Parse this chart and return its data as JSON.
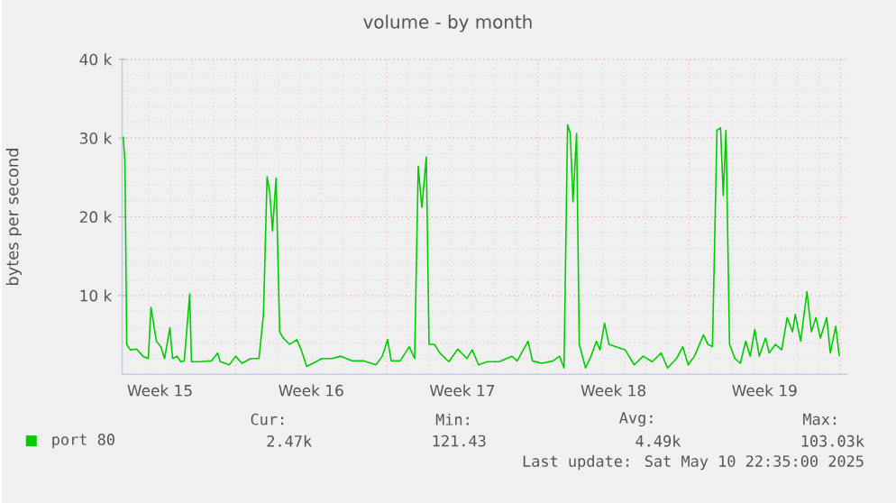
{
  "chart_data": {
    "type": "line",
    "title": "volume - by month",
    "ylabel": "bytes per second",
    "x": [
      "2025-04-08T19:00",
      "2025-04-08T21:00",
      "2025-04-08T23:00",
      "2025-04-09T03:00",
      "2025-04-09T10:00",
      "2025-04-09T17:00",
      "2025-04-09T23:00",
      "2025-04-10T02:00",
      "2025-04-10T08:00",
      "2025-04-10T13:00",
      "2025-04-10T17:00",
      "2025-04-10T23:00",
      "2025-04-11T02:00",
      "2025-04-11T07:00",
      "2025-04-11T11:00",
      "2025-04-11T15:00",
      "2025-04-11T21:00",
      "2025-04-11T23:00",
      "2025-04-12T08:00",
      "2025-04-12T21:00",
      "2025-04-13T04:00",
      "2025-04-13T07:00",
      "2025-04-13T17:00",
      "2025-04-14T00:00",
      "2025-04-14T07:00",
      "2025-04-14T17:00",
      "2025-04-15T02:00",
      "2025-04-15T07:00",
      "2025-04-15T11:00",
      "2025-04-15T14:00",
      "2025-04-15T17:00",
      "2025-04-15T21:00",
      "2025-04-16T01:00",
      "2025-04-16T05:00",
      "2025-04-16T12:00",
      "2025-04-16T20:00",
      "2025-04-17T01:00",
      "2025-04-17T07:00",
      "2025-04-17T14:00",
      "2025-04-18T00:00",
      "2025-04-18T11:00",
      "2025-04-18T21:00",
      "2025-04-19T10:00",
      "2025-04-19T23:00",
      "2025-04-20T12:00",
      "2025-04-20T19:00",
      "2025-04-21T01:00",
      "2025-04-21T05:00",
      "2025-04-21T15:00",
      "2025-04-22T01:00",
      "2025-04-22T07:00",
      "2025-04-22T11:00",
      "2025-04-22T15:00",
      "2025-04-22T20:00",
      "2025-04-22T23:00",
      "2025-04-23T05:00",
      "2025-04-23T11:00",
      "2025-04-23T21:00",
      "2025-04-24T07:00",
      "2025-04-24T17:00",
      "2025-04-24T23:00",
      "2025-04-25T06:00",
      "2025-04-25T16:00",
      "2025-04-26T05:00",
      "2025-04-26T19:00",
      "2025-04-27T01:00",
      "2025-04-27T13:00",
      "2025-04-27T18:00",
      "2025-04-28T04:00",
      "2025-04-28T17:00",
      "2025-04-29T00:00",
      "2025-04-29T05:00",
      "2025-04-29T09:00",
      "2025-04-29T12:00",
      "2025-04-29T15:00",
      "2025-04-29T19:00",
      "2025-04-29T22:00",
      "2025-04-30T05:00",
      "2025-04-30T11:00",
      "2025-04-30T17:00",
      "2025-04-30T21:00",
      "2025-05-01T02:00",
      "2025-05-01T07:00",
      "2025-05-01T15:00",
      "2025-05-02T01:00",
      "2025-05-02T11:00",
      "2025-05-02T21:00",
      "2025-05-03T07:00",
      "2025-05-03T17:00",
      "2025-05-04T00:00",
      "2025-05-04T10:00",
      "2025-05-04T17:00",
      "2025-05-04T23:00",
      "2025-05-05T06:00",
      "2025-05-05T16:00",
      "2025-05-05T21:00",
      "2025-05-06T02:00",
      "2025-05-06T07:00",
      "2025-05-06T11:00",
      "2025-05-06T14:00",
      "2025-05-06T17:00",
      "2025-05-06T21:00",
      "2025-05-07T03:00",
      "2025-05-07T09:00",
      "2025-05-07T15:00",
      "2025-05-07T20:00",
      "2025-05-08T01:00",
      "2025-05-08T06:00",
      "2025-05-08T13:00",
      "2025-05-08T17:00",
      "2025-05-09T00:00",
      "2025-05-09T07:00",
      "2025-05-09T13:00",
      "2025-05-09T19:00",
      "2025-05-09T22:00",
      "2025-05-10T04:00",
      "2025-05-10T11:00",
      "2025-05-10T16:00",
      "2025-05-10T21:00",
      "2025-05-11T02:00",
      "2025-05-11T09:00",
      "2025-05-11T13:00",
      "2025-05-11T19:00",
      "2025-05-11T23:00"
    ],
    "series": [
      {
        "name": "port 80",
        "color": "#00cc00",
        "values": [
          30200,
          27200,
          3800,
          3100,
          3200,
          2300,
          2000,
          8500,
          4200,
          3500,
          2000,
          5900,
          2000,
          2300,
          1600,
          1700,
          10200,
          1600,
          1600,
          1700,
          2700,
          1600,
          1200,
          2300,
          1400,
          2000,
          2000,
          7600,
          25100,
          23100,
          18200,
          24900,
          5400,
          4600,
          3800,
          4400,
          3100,
          1000,
          1400,
          2000,
          2000,
          2300,
          1700,
          1700,
          1200,
          2300,
          4400,
          1700,
          1700,
          3500,
          2000,
          26400,
          21200,
          27600,
          3800,
          3800,
          2700,
          1600,
          3200,
          2000,
          3100,
          1200,
          1600,
          1600,
          2300,
          1700,
          4200,
          1700,
          1400,
          1700,
          2300,
          800,
          31700,
          30600,
          21900,
          30600,
          3800,
          800,
          2300,
          4200,
          3100,
          6500,
          3800,
          3500,
          3100,
          1200,
          2300,
          1600,
          2700,
          800,
          2000,
          3500,
          1200,
          2300,
          5000,
          3800,
          3500,
          31000,
          31300,
          22700,
          31000,
          3800,
          2000,
          1400,
          4200,
          2300,
          5700,
          2300,
          4600,
          2700,
          3800,
          3100,
          7200,
          5400,
          7600,
          4200,
          10500,
          5400,
          7200,
          4600,
          7200,
          2700,
          6100,
          2300
        ]
      }
    ],
    "xlim": [
      "2025-04-08T18:00",
      "2025-05-12T08:00"
    ],
    "ylim": [
      0,
      40000
    ],
    "xticks": [
      {
        "value": "2025-04-10T12:00",
        "label": "Week 15"
      },
      {
        "value": "2025-04-17T12:00",
        "label": "Week 16"
      },
      {
        "value": "2025-04-24T12:00",
        "label": "Week 17"
      },
      {
        "value": "2025-05-01T12:00",
        "label": "Week 18"
      },
      {
        "value": "2025-05-08T12:00",
        "label": "Week 19"
      }
    ],
    "yticks": [
      {
        "value": 10000,
        "label": "10 k"
      },
      {
        "value": 20000,
        "label": "20 k"
      },
      {
        "value": 30000,
        "label": "30 k"
      },
      {
        "value": 40000,
        "label": "40 k"
      }
    ],
    "grid": true,
    "legend": "bottom left",
    "annotations": [
      "Cur:",
      "Min:",
      "Avg:",
      "Max:",
      "2.47k",
      "121.43",
      "4.49k",
      "103.03k",
      "Last update:  Sat May 10 22:35:00 2025"
    ]
  }
}
